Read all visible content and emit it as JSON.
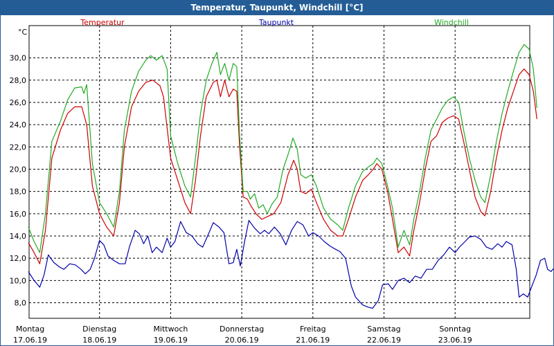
{
  "window": {
    "title": "Temperatur, Taupunkt, Windchill [°C]"
  },
  "chart_data": {
    "type": "line",
    "title": "Temperatur, Taupunkt, Windchill [°C]",
    "ylabel": "°C",
    "ylim": [
      6.6,
      32.9
    ],
    "yticks": [
      "8,0",
      "10,0",
      "12,0",
      "14,0",
      "16,0",
      "18,0",
      "20,0",
      "22,0",
      "24,0",
      "26,0",
      "28,0",
      "30,0"
    ],
    "ytick_values": [
      8,
      10,
      12,
      14,
      16,
      18,
      20,
      22,
      24,
      26,
      28,
      30
    ],
    "xlim": [
      0,
      7.15
    ],
    "xticks": [
      {
        "x": 0,
        "day": "Montag",
        "date": "17.06.19"
      },
      {
        "x": 1,
        "day": "Dienstag",
        "date": "18.06.19"
      },
      {
        "x": 2,
        "day": "Mittwoch",
        "date": "19.06.19"
      },
      {
        "x": 3,
        "day": "Donnerstag",
        "date": "20.06.19"
      },
      {
        "x": 4,
        "day": "Freitag",
        "date": "21.06.19"
      },
      {
        "x": 5,
        "day": "Samstag",
        "date": "22.06.19"
      },
      {
        "x": 6,
        "day": "Sonntag",
        "date": "23.06.19"
      }
    ],
    "grid": true,
    "series": [
      {
        "name": "Temperatur",
        "color": "#cc0000",
        "points": [
          [
            0,
            13.4
          ],
          [
            0.08,
            12.5
          ],
          [
            0.16,
            11.5
          ],
          [
            0.24,
            14.5
          ],
          [
            0.33,
            21
          ],
          [
            0.45,
            23.5
          ],
          [
            0.55,
            25
          ],
          [
            0.65,
            25.6
          ],
          [
            0.75,
            25.6
          ],
          [
            0.82,
            24
          ],
          [
            0.9,
            18.5
          ],
          [
            1.0,
            16
          ],
          [
            1.1,
            14.8
          ],
          [
            1.2,
            14
          ],
          [
            1.28,
            17
          ],
          [
            1.35,
            22
          ],
          [
            1.45,
            25.6
          ],
          [
            1.55,
            27
          ],
          [
            1.65,
            27.8
          ],
          [
            1.75,
            28
          ],
          [
            1.85,
            27.5
          ],
          [
            1.9,
            26.5
          ],
          [
            2.0,
            21
          ],
          [
            2.1,
            19
          ],
          [
            2.2,
            17
          ],
          [
            2.28,
            16
          ],
          [
            2.35,
            19
          ],
          [
            2.42,
            23
          ],
          [
            2.5,
            26.5
          ],
          [
            2.6,
            27.8
          ],
          [
            2.65,
            28
          ],
          [
            2.7,
            26.5
          ],
          [
            2.76,
            28
          ],
          [
            2.82,
            26.5
          ],
          [
            2.88,
            27.2
          ],
          [
            2.93,
            27
          ],
          [
            2.97,
            22
          ],
          [
            3.02,
            17.5
          ],
          [
            3.08,
            17.3
          ],
          [
            3.12,
            16.8
          ],
          [
            3.2,
            16
          ],
          [
            3.28,
            15.5
          ],
          [
            3.35,
            15.7
          ],
          [
            3.45,
            16
          ],
          [
            3.55,
            17
          ],
          [
            3.65,
            19.5
          ],
          [
            3.73,
            20.8
          ],
          [
            3.78,
            20
          ],
          [
            3.83,
            18
          ],
          [
            3.9,
            17.8
          ],
          [
            3.98,
            18.2
          ],
          [
            4.05,
            17
          ],
          [
            4.15,
            15.5
          ],
          [
            4.25,
            14.5
          ],
          [
            4.35,
            14
          ],
          [
            4.42,
            14
          ],
          [
            4.5,
            15.5
          ],
          [
            4.6,
            17.5
          ],
          [
            4.7,
            19
          ],
          [
            4.78,
            19.5
          ],
          [
            4.85,
            20
          ],
          [
            4.9,
            20.5
          ],
          [
            4.97,
            20
          ],
          [
            5.05,
            18
          ],
          [
            5.12,
            15.5
          ],
          [
            5.2,
            12.5
          ],
          [
            5.28,
            13
          ],
          [
            5.36,
            12.2
          ],
          [
            5.42,
            14.5
          ],
          [
            5.5,
            17
          ],
          [
            5.58,
            20
          ],
          [
            5.66,
            22.5
          ],
          [
            5.74,
            23
          ],
          [
            5.82,
            24.2
          ],
          [
            5.9,
            24.6
          ],
          [
            5.98,
            24.8
          ],
          [
            6.05,
            24.5
          ],
          [
            6.12,
            22.5
          ],
          [
            6.2,
            20
          ],
          [
            6.28,
            17.5
          ],
          [
            6.36,
            16.2
          ],
          [
            6.42,
            15.8
          ],
          [
            6.5,
            18
          ],
          [
            6.58,
            21
          ],
          [
            6.66,
            23.5
          ],
          [
            6.74,
            25.5
          ],
          [
            6.82,
            27
          ],
          [
            6.9,
            28.5
          ],
          [
            6.97,
            29
          ],
          [
            7.04,
            28.5
          ],
          [
            7.1,
            27
          ],
          [
            7.15,
            24.5
          ]
        ]
      },
      {
        "name": "Taupunkt",
        "color": "#0000aa",
        "points": [
          [
            0,
            10.8
          ],
          [
            0.08,
            10
          ],
          [
            0.16,
            9.4
          ],
          [
            0.22,
            10.5
          ],
          [
            0.28,
            12.3
          ],
          [
            0.36,
            11.6
          ],
          [
            0.44,
            11.2
          ],
          [
            0.5,
            11
          ],
          [
            0.58,
            11.5
          ],
          [
            0.66,
            11.4
          ],
          [
            0.74,
            11
          ],
          [
            0.8,
            10.6
          ],
          [
            0.87,
            11
          ],
          [
            0.93,
            12
          ],
          [
            1.0,
            13.6
          ],
          [
            1.06,
            13.2
          ],
          [
            1.12,
            12.2
          ],
          [
            1.2,
            11.8
          ],
          [
            1.28,
            11.5
          ],
          [
            1.36,
            11.5
          ],
          [
            1.42,
            13
          ],
          [
            1.5,
            14.5
          ],
          [
            1.56,
            14.2
          ],
          [
            1.62,
            13.3
          ],
          [
            1.68,
            14
          ],
          [
            1.74,
            12.5
          ],
          [
            1.8,
            13
          ],
          [
            1.88,
            12.5
          ],
          [
            1.95,
            13.8
          ],
          [
            2.0,
            13
          ],
          [
            2.06,
            13.5
          ],
          [
            2.14,
            15.3
          ],
          [
            2.22,
            14.3
          ],
          [
            2.3,
            14
          ],
          [
            2.38,
            13.3
          ],
          [
            2.45,
            13
          ],
          [
            2.52,
            14
          ],
          [
            2.6,
            15.2
          ],
          [
            2.68,
            14.8
          ],
          [
            2.75,
            14.3
          ],
          [
            2.82,
            11.5
          ],
          [
            2.88,
            11.6
          ],
          [
            2.93,
            12.8
          ],
          [
            2.98,
            11.3
          ],
          [
            3.04,
            13.5
          ],
          [
            3.1,
            15.4
          ],
          [
            3.18,
            14.7
          ],
          [
            3.26,
            14.2
          ],
          [
            3.32,
            14.5
          ],
          [
            3.38,
            14.2
          ],
          [
            3.46,
            14.8
          ],
          [
            3.54,
            14.2
          ],
          [
            3.62,
            13.2
          ],
          [
            3.7,
            14.5
          ],
          [
            3.78,
            15.3
          ],
          [
            3.86,
            15
          ],
          [
            3.94,
            14
          ],
          [
            4.0,
            14.3
          ],
          [
            4.08,
            14
          ],
          [
            4.16,
            13.5
          ],
          [
            4.24,
            13.1
          ],
          [
            4.32,
            12.8
          ],
          [
            4.38,
            12.6
          ],
          [
            4.46,
            12
          ],
          [
            4.54,
            9.5
          ],
          [
            4.6,
            8.5
          ],
          [
            4.7,
            7.8
          ],
          [
            4.78,
            7.6
          ],
          [
            4.84,
            7.5
          ],
          [
            4.92,
            8.2
          ],
          [
            4.98,
            9.6
          ],
          [
            5.06,
            9.7
          ],
          [
            5.12,
            9.2
          ],
          [
            5.2,
            10
          ],
          [
            5.28,
            10.2
          ],
          [
            5.36,
            9.8
          ],
          [
            5.44,
            10.4
          ],
          [
            5.52,
            10.2
          ],
          [
            5.6,
            11
          ],
          [
            5.68,
            11
          ],
          [
            5.76,
            11.8
          ],
          [
            5.84,
            12.3
          ],
          [
            5.92,
            13
          ],
          [
            6.0,
            12.5
          ],
          [
            6.06,
            13
          ],
          [
            6.14,
            13.5
          ],
          [
            6.2,
            13.9
          ],
          [
            6.28,
            14
          ],
          [
            6.36,
            13.7
          ],
          [
            6.44,
            13
          ],
          [
            6.52,
            12.8
          ],
          [
            6.6,
            13.3
          ],
          [
            6.66,
            13
          ],
          [
            6.72,
            13.5
          ],
          [
            6.8,
            13.2
          ],
          [
            6.86,
            11
          ],
          [
            6.9,
            8.5
          ],
          [
            6.96,
            8.8
          ],
          [
            7.02,
            8.5
          ],
          [
            7.08,
            9.5
          ],
          [
            7.14,
            10.5
          ],
          [
            7.2,
            11.8
          ],
          [
            7.26,
            12
          ],
          [
            7.3,
            11
          ],
          [
            7.35,
            10.8
          ],
          [
            7.4,
            11.2
          ]
        ]
      },
      {
        "name": "Windchill",
        "color": "#22aa22",
        "points": [
          [
            0,
            14.8
          ],
          [
            0.08,
            13.5
          ],
          [
            0.16,
            12.5
          ],
          [
            0.24,
            16
          ],
          [
            0.33,
            22.5
          ],
          [
            0.45,
            24.3
          ],
          [
            0.55,
            26.2
          ],
          [
            0.65,
            27.3
          ],
          [
            0.75,
            27.4
          ],
          [
            0.78,
            26.8
          ],
          [
            0.82,
            27.6
          ],
          [
            0.9,
            20.5
          ],
          [
            1.0,
            17
          ],
          [
            1.1,
            16
          ],
          [
            1.2,
            14.8
          ],
          [
            1.28,
            18
          ],
          [
            1.35,
            23.5
          ],
          [
            1.45,
            27
          ],
          [
            1.55,
            28.8
          ],
          [
            1.65,
            29.8
          ],
          [
            1.72,
            30.2
          ],
          [
            1.8,
            29.8
          ],
          [
            1.88,
            30.2
          ],
          [
            1.95,
            29
          ],
          [
            2.0,
            23
          ],
          [
            2.1,
            20.5
          ],
          [
            2.2,
            18.5
          ],
          [
            2.28,
            17.5
          ],
          [
            2.35,
            21
          ],
          [
            2.42,
            25
          ],
          [
            2.5,
            28
          ],
          [
            2.58,
            29.5
          ],
          [
            2.65,
            30.5
          ],
          [
            2.7,
            28.5
          ],
          [
            2.76,
            29.5
          ],
          [
            2.82,
            28
          ],
          [
            2.88,
            29.5
          ],
          [
            2.93,
            29.2
          ],
          [
            2.97,
            23
          ],
          [
            3.02,
            18
          ],
          [
            3.08,
            18
          ],
          [
            3.12,
            17.3
          ],
          [
            3.18,
            17.8
          ],
          [
            3.24,
            16.5
          ],
          [
            3.3,
            16.8
          ],
          [
            3.36,
            16
          ],
          [
            3.42,
            16.8
          ],
          [
            3.5,
            17.5
          ],
          [
            3.58,
            20
          ],
          [
            3.66,
            21.5
          ],
          [
            3.72,
            22.8
          ],
          [
            3.78,
            21.8
          ],
          [
            3.83,
            19.5
          ],
          [
            3.9,
            19.2
          ],
          [
            3.98,
            19.5
          ],
          [
            4.05,
            18.5
          ],
          [
            4.15,
            16.5
          ],
          [
            4.25,
            15.5
          ],
          [
            4.35,
            15
          ],
          [
            4.42,
            14.5
          ],
          [
            4.5,
            16.5
          ],
          [
            4.6,
            18.5
          ],
          [
            4.7,
            19.8
          ],
          [
            4.78,
            20.2
          ],
          [
            4.85,
            20.5
          ],
          [
            4.9,
            21
          ],
          [
            4.97,
            20.5
          ],
          [
            5.05,
            18.5
          ],
          [
            5.12,
            16.5
          ],
          [
            5.2,
            13
          ],
          [
            5.28,
            14.5
          ],
          [
            5.36,
            13.2
          ],
          [
            5.42,
            15.5
          ],
          [
            5.5,
            18
          ],
          [
            5.58,
            21
          ],
          [
            5.66,
            23.5
          ],
          [
            5.74,
            24.5
          ],
          [
            5.82,
            25.5
          ],
          [
            5.9,
            26.2
          ],
          [
            5.98,
            26.5
          ],
          [
            6.05,
            26
          ],
          [
            6.12,
            23.5
          ],
          [
            6.2,
            21
          ],
          [
            6.28,
            19
          ],
          [
            6.36,
            17.5
          ],
          [
            6.42,
            17
          ],
          [
            6.5,
            19.5
          ],
          [
            6.58,
            22.5
          ],
          [
            6.66,
            25
          ],
          [
            6.74,
            27
          ],
          [
            6.82,
            28.8
          ],
          [
            6.9,
            30.5
          ],
          [
            6.97,
            31.2
          ],
          [
            7.04,
            30.8
          ],
          [
            7.1,
            29
          ],
          [
            7.15,
            25.5
          ]
        ]
      }
    ]
  }
}
